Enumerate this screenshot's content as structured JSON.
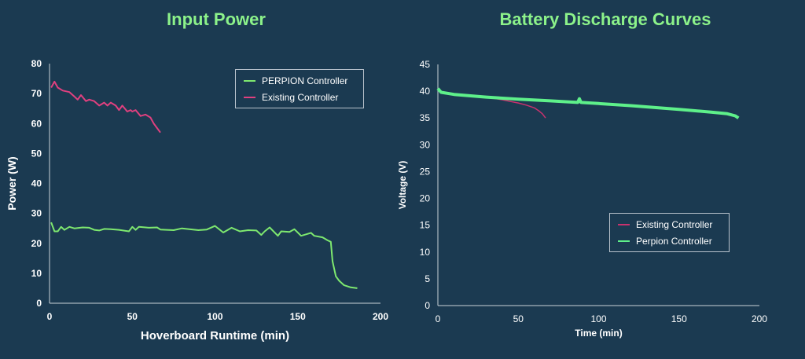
{
  "chart_data": [
    {
      "type": "line",
      "title": "Input Power",
      "xlabel": "Hoverboard Runtime (min)",
      "ylabel": "Power (W)",
      "xlim": [
        0,
        200
      ],
      "ylim": [
        0,
        80
      ],
      "xticks": [
        "0",
        "50",
        "100",
        "150",
        "200"
      ],
      "yticks": [
        "0",
        "10",
        "20",
        "30",
        "40",
        "50",
        "60",
        "70",
        "80"
      ],
      "legend_position": "top-right",
      "series": [
        {
          "name": "PERPION Controller",
          "color": "#7ee86f",
          "x": [
            1,
            3,
            5,
            7,
            9,
            12,
            15,
            20,
            24,
            27,
            30,
            33,
            37,
            42,
            48,
            50,
            52,
            54,
            60,
            65,
            67,
            75,
            80,
            90,
            95,
            100,
            103,
            105,
            110,
            115,
            120,
            125,
            128,
            130,
            133,
            138,
            140,
            145,
            148,
            152,
            155,
            158,
            160,
            165,
            168,
            170,
            171,
            173,
            175,
            178,
            182,
            186
          ],
          "y": [
            27,
            24,
            24,
            25.5,
            24.5,
            25.5,
            25,
            25.3,
            25.2,
            24.5,
            24.3,
            24.8,
            24.7,
            24.5,
            24,
            25.5,
            24.5,
            25.5,
            25.2,
            25.3,
            24.6,
            24.4,
            25,
            24.4,
            24.6,
            25.8,
            24.5,
            23.6,
            25.2,
            24,
            24.4,
            24.3,
            22.8,
            24,
            25.3,
            22.5,
            24,
            23.8,
            24.7,
            22.5,
            23,
            23.5,
            22.5,
            22,
            21,
            20.5,
            14,
            9,
            7.5,
            6,
            5.3,
            5
          ]
        },
        {
          "name": "Existing Controller",
          "color": "#e0407f",
          "x": [
            1,
            3,
            5,
            8,
            12,
            15,
            17,
            19,
            22,
            24,
            27,
            30,
            33,
            35,
            37,
            40,
            42,
            44,
            47,
            49,
            50,
            52,
            55,
            58,
            61,
            63,
            65,
            67
          ],
          "y": [
            72,
            74,
            72,
            71,
            70.5,
            69,
            68,
            69.5,
            67.5,
            68,
            67.5,
            66,
            67,
            66,
            67,
            66,
            64.5,
            66,
            64,
            64.5,
            64,
            64.5,
            62.5,
            63,
            62,
            60,
            58.5,
            57
          ]
        }
      ]
    },
    {
      "type": "line",
      "title": "Battery Discharge Curves",
      "xlabel": "Time (min)",
      "ylabel": "Voltage (V)",
      "xlim": [
        0,
        200
      ],
      "ylim": [
        0,
        45
      ],
      "xticks": [
        "0",
        "50",
        "100",
        "150",
        "200"
      ],
      "yticks": [
        "0",
        "5",
        "10",
        "15",
        "20",
        "25",
        "30",
        "35",
        "40",
        "45"
      ],
      "legend_position": "center-right",
      "series": [
        {
          "name": "Existing Controller",
          "color": "#c8326e",
          "x": [
            0,
            2,
            10,
            30,
            40,
            50,
            55,
            60,
            63,
            65,
            67
          ],
          "y": [
            40.5,
            39.8,
            39.4,
            38.9,
            38.4,
            37.8,
            37.4,
            36.9,
            36.3,
            35.8,
            35
          ]
        },
        {
          "name": "Perpion Controller",
          "color": "#5ef08a",
          "x": [
            0,
            2,
            10,
            30,
            50,
            70,
            87,
            88,
            89,
            100,
            120,
            150,
            170,
            180,
            185,
            187
          ],
          "y": [
            40.5,
            39.8,
            39.4,
            38.9,
            38.5,
            38.2,
            37.9,
            38.6,
            37.9,
            37.7,
            37.3,
            36.6,
            36.1,
            35.8,
            35.4,
            35
          ]
        }
      ]
    }
  ]
}
